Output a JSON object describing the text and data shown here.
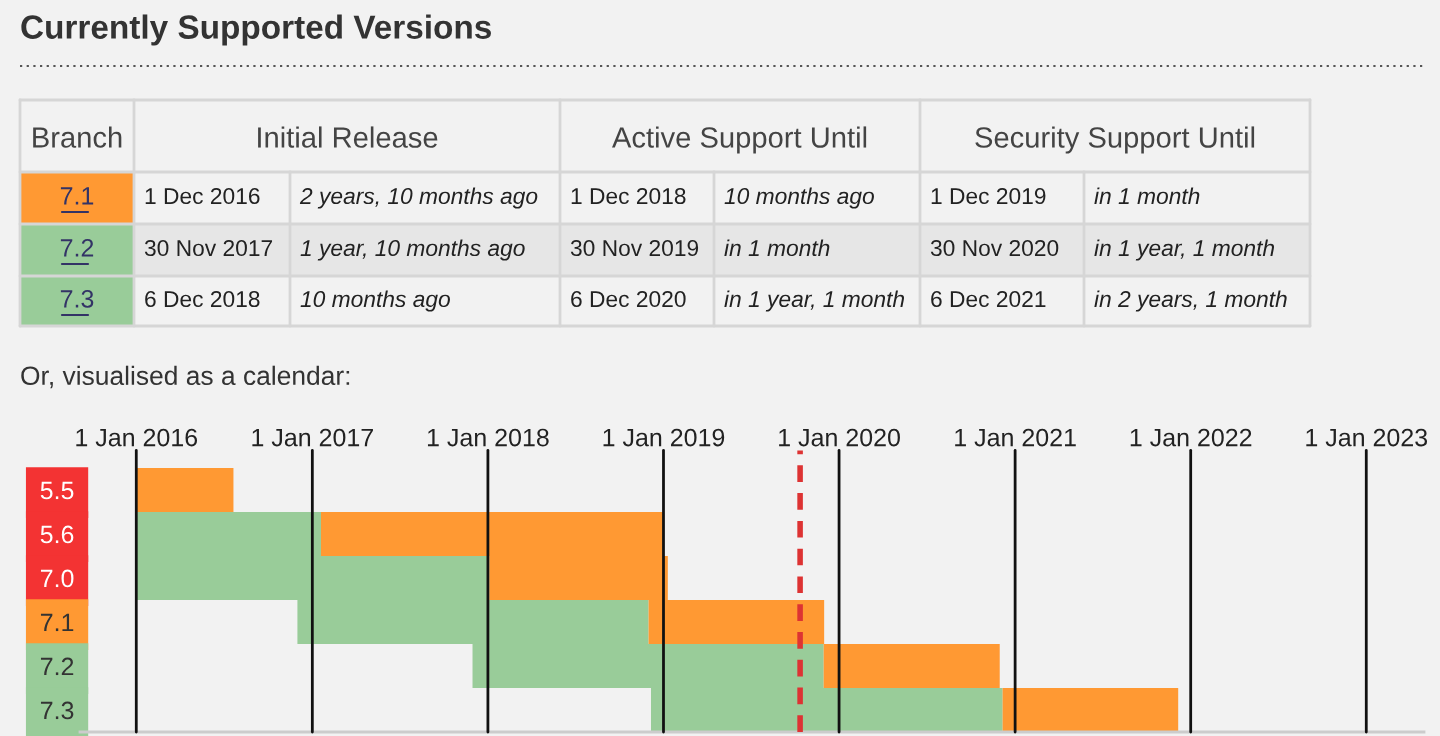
{
  "chart_data": [
    {
      "type": "other",
      "title": "Currently Supported Versions",
      "annotations": [
        "Branch",
        "Initial Release",
        "Active Support Until",
        "Security Support Until",
        "7.1",
        "1 Dec 2016",
        "2 years, 10 months ago",
        "1 Dec 2018",
        "10 months ago",
        "1 Dec 2019",
        "in 1 month",
        "7.2",
        "30 Nov 2017",
        "1 year, 10 months ago",
        "30 Nov 2019",
        "in 1 month",
        "30 Nov 2020",
        "in 1 year, 1 month",
        "7.3",
        "6 Dec 2018",
        "10 months ago",
        "6 Dec 2020",
        "in 1 year, 1 month",
        "6 Dec 2021",
        "in 2 years, 1 month"
      ],
      "colors": [
        "#ff9933",
        "#99cc99",
        "#99cc99"
      ]
    },
    {
      "type": "bar",
      "orientation": "horizontal",
      "title": "Or, visualised as a calendar:",
      "categories": [
        "5.5",
        "5.6",
        "7.0",
        "7.1",
        "7.2",
        "7.3"
      ],
      "series": [
        {
          "color": "#99cc99",
          "base": [
            null,
            16801,
            16801,
            17136,
            17500,
            17871
          ],
          "values": [
            null,
            384,
            734,
            730,
            730,
            731
          ]
        },
        {
          "color": "#ff9933",
          "base": [
            16801,
            17185,
            17535,
            17866,
            18230,
            18602
          ],
          "values": [
            202,
            711,
            371,
            365,
            366,
            365
          ]
        }
      ],
      "xlim": [
        "2015-09-06",
        "2023-05-01"
      ],
      "xticks": [
        {
          "value": "2016-01-01",
          "label": "1 Jan 2016"
        },
        {
          "value": "2017-01-01",
          "label": "1 Jan 2017"
        },
        {
          "value": "2018-01-01",
          "label": "1 Jan 2018"
        },
        {
          "value": "2019-01-01",
          "label": "1 Jan 2019"
        },
        {
          "value": "2020-01-01",
          "label": "1 Jan 2020"
        },
        {
          "value": "2021-01-01",
          "label": "1 Jan 2021"
        },
        {
          "value": "2022-01-01",
          "label": "1 Jan 2022"
        },
        {
          "value": "2023-01-01",
          "label": "1 Jan 2023"
        }
      ],
      "grid": "x",
      "ref_lines": [
        {
          "axis": "x",
          "value": "2019-10-12",
          "color": "#dd3333",
          "line_style": "dashed"
        }
      ],
      "legend": false
    }
  ]
}
